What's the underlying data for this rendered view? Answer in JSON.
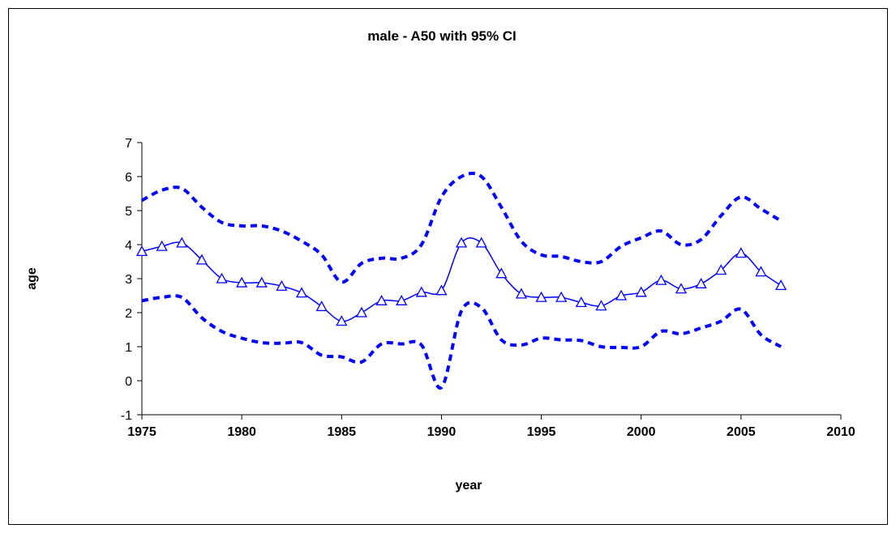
{
  "chart_data": {
    "type": "line",
    "title": "male  - A50 with 95% CI",
    "x_label": "year",
    "y_label": "age",
    "x": [
      1975,
      1976,
      1977,
      1978,
      1979,
      1980,
      1981,
      1982,
      1983,
      1984,
      1985,
      1986,
      1987,
      1988,
      1989,
      1990,
      1991,
      1992,
      1993,
      1994,
      1995,
      1996,
      1997,
      1998,
      1999,
      2000,
      2001,
      2002,
      2003,
      2004,
      2005,
      2006,
      2007
    ],
    "series": [
      {
        "color": "#0000ff",
        "style": "solid",
        "marker": "triangle",
        "values": [
          3.8,
          3.95,
          4.05,
          3.55,
          3.0,
          2.88,
          2.88,
          2.78,
          2.58,
          2.18,
          1.75,
          2.0,
          2.35,
          2.35,
          2.6,
          2.65,
          4.05,
          4.05,
          3.15,
          2.55,
          2.45,
          2.45,
          2.3,
          2.2,
          2.5,
          2.6,
          2.95,
          2.7,
          2.85,
          3.25,
          3.75,
          3.2,
          2.8
        ]
      },
      {
        "color": "#0000ff",
        "style": "dashed",
        "values": [
          5.3,
          5.6,
          5.65,
          5.1,
          4.65,
          4.55,
          4.55,
          4.4,
          4.1,
          3.7,
          2.9,
          3.45,
          3.6,
          3.6,
          4.0,
          5.4,
          6.0,
          6.0,
          5.1,
          4.1,
          3.7,
          3.65,
          3.5,
          3.5,
          3.95,
          4.2,
          4.4,
          4.0,
          4.15,
          4.85,
          5.4,
          5.05,
          4.7
        ]
      },
      {
        "color": "#0000ff",
        "style": "dashed",
        "values": [
          2.35,
          2.45,
          2.45,
          1.85,
          1.45,
          1.25,
          1.12,
          1.1,
          1.12,
          0.75,
          0.7,
          0.55,
          1.08,
          1.08,
          1.05,
          -0.2,
          2.05,
          2.15,
          1.2,
          1.05,
          1.25,
          1.2,
          1.18,
          1.0,
          0.98,
          1.0,
          1.45,
          1.38,
          1.55,
          1.75,
          2.1,
          1.35,
          1.0
        ]
      }
    ],
    "xlim": [
      1975,
      2010
    ],
    "xticks": [
      1975,
      1980,
      1985,
      1990,
      1995,
      2000,
      2005,
      2010
    ],
    "ylim": [
      -1,
      7
    ],
    "yticks": [
      -1,
      0,
      1,
      2,
      3,
      4,
      5,
      6,
      7
    ],
    "grid": false,
    "smooth": true
  }
}
